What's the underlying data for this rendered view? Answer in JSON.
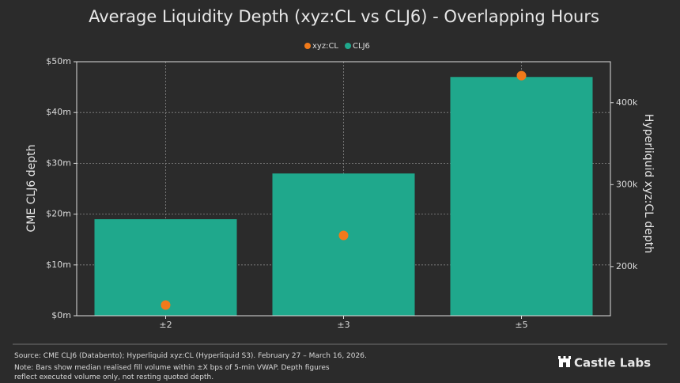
{
  "chart_data": {
    "type": "combo",
    "title": "Average Liquidity Depth (xyz:CL vs CLJ6) - Overlapping Hours",
    "categories": [
      "±2",
      "±3",
      "±5"
    ],
    "series": [
      {
        "name": "xyz:CL",
        "type": "scatter",
        "axis": "y2",
        "color": "#f07a1a",
        "values": [
          153,
          238,
          433
        ]
      },
      {
        "name": "CLJ6",
        "type": "bar",
        "color": "#1fa88c",
        "values": [
          19,
          28,
          47
        ]
      }
    ],
    "ylabel": "CME CLJ6 depth",
    "y2label": "Hyperliquid xyz:CL depth",
    "ylim": [
      0,
      50
    ],
    "yticks": [
      {
        "value": 0,
        "label": "$0m"
      },
      {
        "value": 10,
        "label": "$10m"
      },
      {
        "value": 20,
        "label": "$20m"
      },
      {
        "value": 30,
        "label": "$30m"
      },
      {
        "value": 40,
        "label": "$40m"
      },
      {
        "value": 50,
        "label": "$50m"
      }
    ],
    "y2lim": [
      140,
      450
    ],
    "y2ticks": [
      {
        "value": 200,
        "label": "200k"
      },
      {
        "value": 300,
        "label": "300k"
      },
      {
        "value": 400,
        "label": "400k"
      }
    ],
    "grid": true,
    "legend": "top",
    "source": "Source: CME CLJ6 (Databento); Hyperliquid xyz:CL (Hyperliquid S3). February 27 – March 16, 2026.",
    "note_lines": [
      "Note: Bars show median realised fill volume within ±X bps of 5-min VWAP. Depth figures",
      "reflect executed volume only, not resting quoted depth."
    ],
    "brand": "Castle Labs"
  }
}
